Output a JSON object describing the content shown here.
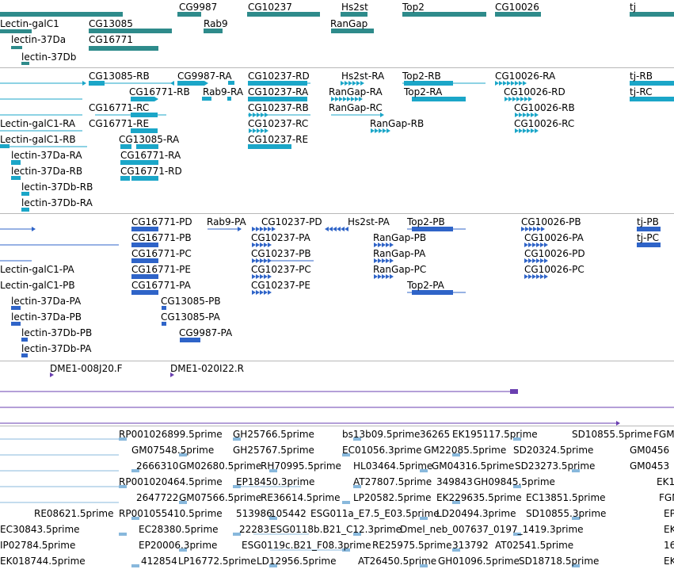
{
  "colors": {
    "gene": "#2e8b8b",
    "transcript_light": "#1ba6c8",
    "transcript_dark": "#2f64c8",
    "cdna": "#6a3fb0",
    "est": "#88b8dc",
    "separator": "#b8b8b8"
  },
  "tracks": {
    "genes": {
      "labels": [
        "CG9987",
        "CG10237",
        "Hs2st",
        "Top2",
        "CG10026",
        "tj",
        "Lectin-galC1",
        "CG13085",
        "Rab9",
        "RanGap",
        "lectin-37Da",
        "CG16771",
        "lectin-37Db"
      ]
    },
    "transcripts_a": {
      "labels": [
        "CG13085-RB",
        "CG9987-RA",
        "CG10237-RD",
        "Hs2st-RA",
        "Top2-RB",
        "CG10026-RA",
        "tj-RB",
        "CG16771-RB",
        "Rab9-RA",
        "CG10237-RA",
        "RanGap-RA",
        "Top2-RA",
        "CG10026-RD",
        "tj-RC",
        "CG16771-RC",
        "CG10237-RB",
        "RanGap-RC",
        "CG10026-RB",
        "Lectin-galC1-RA",
        "CG16771-RE",
        "CG10237-RC",
        "RanGap-RB",
        "CG10026-RC",
        "Lectin-galC1-RB",
        "CG13085-RA",
        "CG10237-RE",
        "lectin-37Da-RA",
        "CG16771-RA",
        "lectin-37Da-RB",
        "CG16771-RD",
        "lectin-37Db-RB",
        "lectin-37Db-RA"
      ]
    },
    "transcripts_b": {
      "labels": [
        "CG16771-PD",
        "Rab9-PA",
        "CG10237-PD",
        "Hs2st-PA",
        "Top2-PB",
        "CG10026-PB",
        "tj-PB",
        "CG16771-PB",
        "CG10237-PA",
        "RanGap-PB",
        "CG10026-PA",
        "tj-PC",
        "CG16771-PC",
        "CG10237-PB",
        "RanGap-PA",
        "CG10026-PD",
        "Lectin-galC1-PA",
        "CG16771-PE",
        "CG10237-PC",
        "RanGap-PC",
        "CG10026-PC",
        "Lectin-galC1-PB",
        "CG16771-PA",
        "CG10237-PE",
        "Top2-PA",
        "lectin-37Da-PA",
        "CG13085-PB",
        "lectin-37Da-PB",
        "CG13085-PA",
        "lectin-37Db-PB",
        "CG9987-PA",
        "lectin-37Db-PA"
      ]
    },
    "cdna": {
      "labels": [
        "DME1-008J20.F",
        "DME1-020I22.R"
      ]
    },
    "est": {
      "labels": [
        "RP001026899.5prime",
        "GH25766.5prime",
        "bs13b09.5prime",
        "36265",
        "EK195117.5prime",
        "SD10855.5prime",
        "FGM",
        "GM07548.5prime",
        "GH25767.5prime",
        "EC01056.3prime",
        "GM22085.5prime",
        "SD20324.5prime",
        "GM0456",
        "2666310",
        "GM02680.5prime",
        "RH70995.5prime",
        "HL03464.5prime",
        "GM04316.5prime",
        "SD23273.5prime",
        "GM0453",
        "RP001020464.5prime",
        "EP18450.3prime",
        "AT27807.5prime",
        "349843",
        "GH09845.5prime",
        "EK1",
        "2647722",
        "GM07566.5prime",
        "RE36614.5prime",
        "LP20582.5prime",
        "EK229635.5prime",
        "EC13851.5prime",
        "FGM",
        "RE08621.5prime",
        "RP001055410.5prime",
        "513986",
        "105442",
        "ESG011a_E7.5_E03.5prime",
        "LD20494.3prime",
        "SD10855.3prime",
        "EP",
        "EC30843.5prime",
        "EC28380.5prime",
        "22283",
        "ESG0118b.B21_C12.3prime",
        "Dmel_neb_007637_0197_1419.3prime",
        "EK",
        "IP02784.5prime",
        "EP20006.3prime",
        "ESG0119c.B21_F08.3prime",
        "RE25975.5prime",
        "313792",
        "AT02541.5prime",
        "16",
        "EK018744.5prime",
        "412854",
        "LP16772.5prime",
        "LD12956.5prime",
        "AT26450.5prime",
        "GH01096.5prime",
        "SD18718.5prime",
        "EK"
      ]
    }
  }
}
